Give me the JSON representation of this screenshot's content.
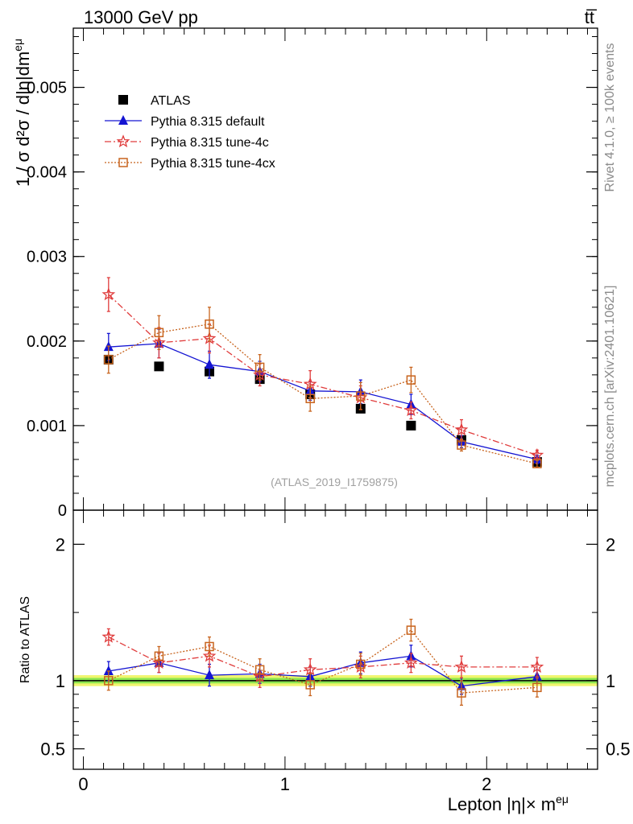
{
  "header": {
    "energy_label": "13000 GeV pp",
    "process_label": "tt̅"
  },
  "watermark": {
    "analysis_id": "(ATLAS_2019_I1759875)"
  },
  "side_labels": {
    "rivet": "Rivet 4.1.0, ≥ 100k events",
    "mcplots": "mcplots.cern.ch [arXiv:2401.10621]"
  },
  "axes": {
    "ylabel_main": "1 / σ  d²σ / d|η|dm",
    "ylabel_main_sup": "eμ",
    "ylabel_ratio": "Ratio to ATLAS",
    "xlabel": "Lepton |η|× m",
    "xlabel_sup": "eμ"
  },
  "colors": {
    "atlas": "#000000",
    "default": "#1414d2",
    "tune4c": "#e03c3c",
    "tune4cx": "#c8641e",
    "band_yellow": "#f0f56e",
    "band_green": "#8ce650"
  },
  "chart_data": [
    {
      "type": "scatter",
      "panel": "main",
      "xlim": [
        -0.05,
        2.55
      ],
      "ylim": [
        0,
        0.0057
      ],
      "y_ticks": [
        0,
        0.001,
        0.002,
        0.003,
        0.004,
        0.005
      ],
      "y_tick_labels": [
        "0",
        "0.001",
        "0.002",
        "0.003",
        "0.004",
        "0.005"
      ],
      "legend_position": "top-left",
      "series": [
        {
          "name": "ATLAS",
          "key": "atlas",
          "x": [
            0.125,
            0.375,
            0.625,
            0.875,
            1.125,
            1.375,
            1.625,
            1.875,
            2.25
          ],
          "y": [
            0.00178,
            0.0017,
            0.00164,
            0.00155,
            0.00137,
            0.0012,
            0.001,
            0.00083,
            0.00057
          ],
          "err": [
            0,
            0,
            0,
            0,
            0,
            0,
            0,
            0,
            0
          ]
        },
        {
          "name": "Pythia 8.315 default",
          "key": "default",
          "x": [
            0.125,
            0.375,
            0.625,
            0.875,
            1.125,
            1.375,
            1.625,
            1.875,
            2.25
          ],
          "y": [
            0.00193,
            0.00197,
            0.00172,
            0.00164,
            0.00141,
            0.0014,
            0.00125,
            0.00081,
            0.0006
          ],
          "err": [
            0.00016,
            0.00017,
            0.00016,
            0.00012,
            0.00011,
            0.00014,
            0.00012,
            7e-05,
            5e-05
          ]
        },
        {
          "name": "Pythia 8.315 tune-4c",
          "key": "tune4c",
          "x": [
            0.125,
            0.375,
            0.625,
            0.875,
            1.125,
            1.375,
            1.625,
            1.875,
            2.25
          ],
          "y": [
            0.00255,
            0.00198,
            0.00203,
            0.0016,
            0.00149,
            0.00133,
            0.00118,
            0.00095,
            0.00065
          ],
          "err": [
            0.0002,
            0.00018,
            0.00017,
            0.00013,
            0.00016,
            0.00014,
            0.0001,
            0.00012,
            6e-05
          ]
        },
        {
          "name": "Pythia 8.315 tune-4cx",
          "key": "tune4cx",
          "x": [
            0.125,
            0.375,
            0.625,
            0.875,
            1.125,
            1.375,
            1.625,
            1.875,
            2.25
          ],
          "y": [
            0.00178,
            0.0021,
            0.0022,
            0.00169,
            0.00132,
            0.00135,
            0.00154,
            0.00077,
            0.00055
          ],
          "err": [
            0.00016,
            0.0002,
            0.0002,
            0.00015,
            0.00015,
            0.00016,
            0.00015,
            7e-05,
            4e-05
          ]
        }
      ]
    },
    {
      "type": "scatter",
      "panel": "ratio",
      "ylabel": "Ratio to ATLAS",
      "xlabel": "Lepton |η|× m^eμ",
      "xlim": [
        -0.05,
        2.55
      ],
      "ylim": [
        0.35,
        2.25
      ],
      "x_ticks": [
        0,
        1,
        2
      ],
      "x_tick_labels": [
        "0",
        "1",
        "2"
      ],
      "y_ticks": [
        0.5,
        1,
        2
      ],
      "y_tick_labels": [
        "0.5",
        "1",
        "2"
      ],
      "band": {
        "inner": [
          0.98,
          1.02
        ],
        "outer": [
          0.96,
          1.04
        ]
      },
      "series": [
        {
          "name": "Pythia 8.315 default",
          "key": "default",
          "x": [
            0.125,
            0.375,
            0.625,
            0.875,
            1.125,
            1.375,
            1.625,
            1.875,
            2.25
          ],
          "y": [
            1.07,
            1.13,
            1.04,
            1.05,
            1.03,
            1.13,
            1.18,
            0.96,
            1.03
          ],
          "err": [
            0.07,
            0.07,
            0.08,
            0.07,
            0.07,
            0.08,
            0.08,
            0.06,
            0.05
          ]
        },
        {
          "name": "Pythia 8.315 tune-4c",
          "key": "tune4c",
          "x": [
            0.125,
            0.375,
            0.625,
            0.875,
            1.125,
            1.375,
            1.625,
            1.875,
            2.25
          ],
          "y": [
            1.32,
            1.13,
            1.18,
            1.03,
            1.08,
            1.1,
            1.13,
            1.1,
            1.1
          ],
          "err": [
            0.06,
            0.07,
            0.08,
            0.08,
            0.08,
            0.08,
            0.07,
            0.08,
            0.07
          ]
        },
        {
          "name": "Pythia 8.315 tune-4cx",
          "key": "tune4cx",
          "x": [
            0.125,
            0.375,
            0.625,
            0.875,
            1.125,
            1.375,
            1.625,
            1.875,
            2.25
          ],
          "y": [
            1.0,
            1.18,
            1.25,
            1.08,
            0.97,
            1.12,
            1.37,
            0.91,
            0.95
          ],
          "err": [
            0.07,
            0.07,
            0.07,
            0.08,
            0.08,
            0.08,
            0.08,
            0.09,
            0.07
          ]
        }
      ]
    }
  ]
}
